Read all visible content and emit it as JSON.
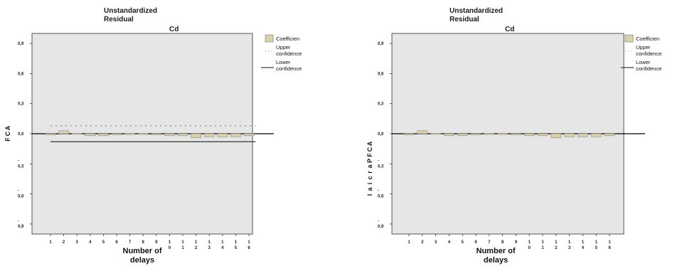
{
  "chart_data": [
    {
      "type": "bar",
      "title": "Unstandardized Residual",
      "subtitle": "Cd",
      "xlabel": "Number of delays",
      "ylabel": "ACF",
      "categories": [
        "1",
        "2",
        "3",
        "4",
        "5",
        "6",
        "7",
        "8",
        "9",
        "10",
        "11",
        "12",
        "13",
        "14",
        "15",
        "16"
      ],
      "category_labels": [
        "1",
        "2",
        "3",
        "4",
        "5",
        "6",
        "7",
        "8",
        "9",
        "1\n0",
        "1\n1",
        "1\n2",
        "1\n3",
        "1\n4",
        "1\n5",
        "1\n6"
      ],
      "series": [
        {
          "name": "Coefficien",
          "values": [
            -0.01,
            0.03,
            0.005,
            -0.02,
            -0.02,
            -0.005,
            0.003,
            0.003,
            0.0,
            -0.02,
            -0.02,
            -0.04,
            -0.03,
            -0.03,
            -0.03,
            -0.02
          ]
        }
      ],
      "upper_confidence": 0.08,
      "lower_confidence": -0.08,
      "ylim": [
        -1.0,
        1.0
      ],
      "yticks": [
        0.9,
        0.6,
        0.3,
        0.0,
        -0.3,
        -0.6,
        -0.9
      ],
      "ytick_labels": [
        "0,9",
        "0,6",
        "0,3",
        "0,0",
        "-\n0,3",
        "-\n0,6",
        "-\n0,9"
      ],
      "legend": [
        "Coefficien",
        "Upper confidence",
        "Lower confidence"
      ],
      "legend_placement": "right",
      "grid": false
    },
    {
      "type": "bar",
      "title": "Unstandardized Residual",
      "subtitle": "Cd",
      "xlabel": "Number of delays",
      "ylabel": "ACF Parcial",
      "categories": [
        "1",
        "2",
        "3",
        "4",
        "5",
        "6",
        "7",
        "8",
        "9",
        "10",
        "11",
        "12",
        "13",
        "14",
        "15",
        "16"
      ],
      "category_labels": [
        "1",
        "2",
        "3",
        "4",
        "5",
        "6",
        "7",
        "8",
        "9",
        "1\n0",
        "1\n1",
        "1\n2",
        "1\n3",
        "1\n4",
        "1\n5",
        "1\n6"
      ],
      "series": [
        {
          "name": "Coefficien",
          "values": [
            -0.01,
            0.03,
            0.005,
            -0.02,
            -0.02,
            -0.005,
            0.003,
            0.003,
            0.0,
            -0.02,
            -0.02,
            -0.04,
            -0.03,
            -0.03,
            -0.03,
            -0.02
          ]
        }
      ],
      "ylim": [
        -1.0,
        1.0
      ],
      "yticks": [
        0.9,
        0.6,
        0.3,
        0.0,
        -0.3,
        -0.6,
        -0.9
      ],
      "ytick_labels": [
        "0,9",
        "0,6",
        "0,3",
        "0,0",
        "-\n0,3",
        "-\n0,6",
        "-\n0,9"
      ],
      "legend": [
        "Coefficien",
        "Upper confidence",
        "Lower confidence"
      ],
      "legend_placement": "right",
      "grid": false
    }
  ],
  "style": {
    "plot_bg": "#e6e6e6",
    "bar_fill": "#d9d2a8",
    "bar_stroke": "#888888"
  }
}
